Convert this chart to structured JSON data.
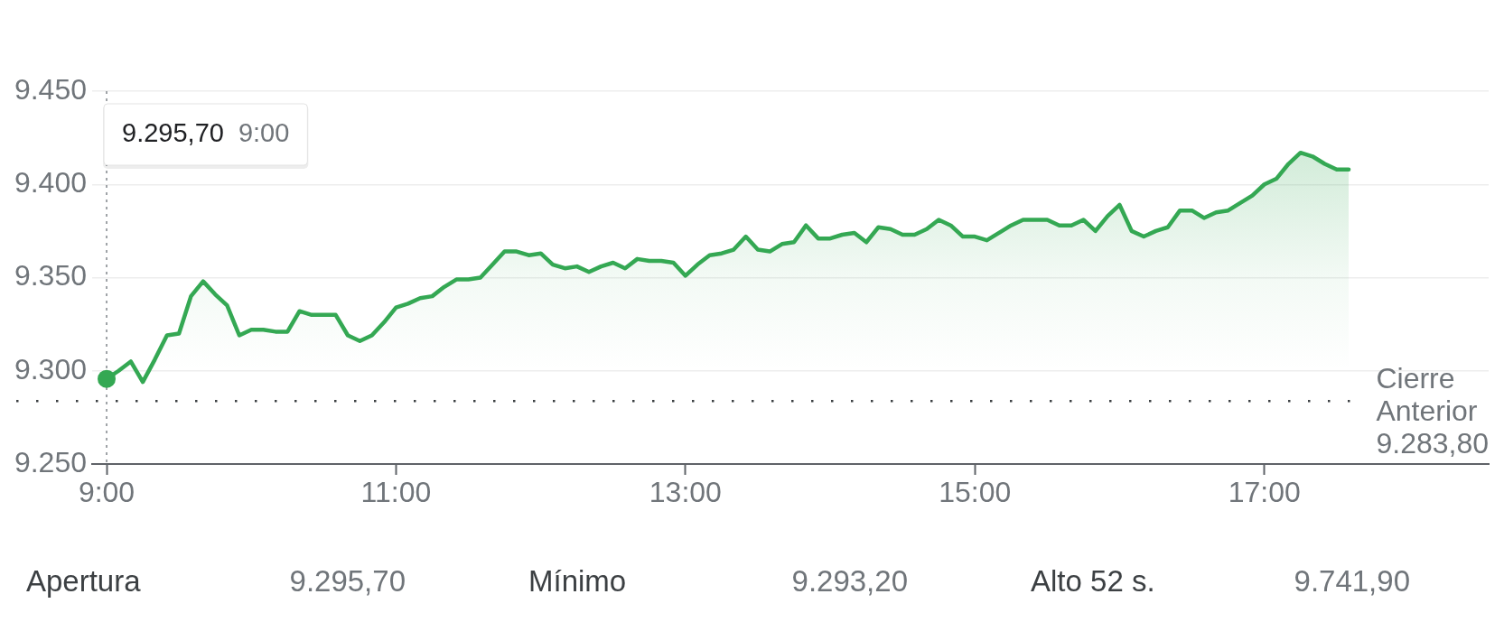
{
  "chart_data": {
    "type": "area",
    "color": "#34a853",
    "x": [
      9,
      9.083,
      9.167,
      9.25,
      9.333,
      9.417,
      9.5,
      9.583,
      9.667,
      9.75,
      9.833,
      9.917,
      10,
      10.083,
      10.167,
      10.25,
      10.333,
      10.417,
      10.5,
      10.583,
      10.667,
      10.75,
      10.833,
      10.917,
      11,
      11.083,
      11.167,
      11.25,
      11.333,
      11.417,
      11.5,
      11.583,
      11.667,
      11.75,
      11.833,
      11.917,
      12,
      12.083,
      12.167,
      12.25,
      12.333,
      12.417,
      12.5,
      12.583,
      12.667,
      12.75,
      12.833,
      12.917,
      13,
      13.083,
      13.167,
      13.25,
      13.333,
      13.417,
      13.5,
      13.583,
      13.667,
      13.75,
      13.833,
      13.917,
      14,
      14.083,
      14.167,
      14.25,
      14.333,
      14.417,
      14.5,
      14.583,
      14.667,
      14.75,
      14.833,
      14.917,
      15,
      15.083,
      15.167,
      15.25,
      15.333,
      15.417,
      15.5,
      15.583,
      15.667,
      15.75,
      15.833,
      15.917,
      16,
      16.083,
      16.167,
      16.25,
      16.333,
      16.417,
      16.5,
      16.583,
      16.667,
      16.75,
      16.833,
      16.917,
      17,
      17.083,
      17.167,
      17.25,
      17.333,
      17.417,
      17.5,
      17.583
    ],
    "values": [
      9295.7,
      9300,
      9305,
      9294,
      9306,
      9319,
      9320,
      9340,
      9348,
      9341,
      9335,
      9319,
      9322,
      9322,
      9321,
      9321,
      9332,
      9330,
      9330,
      9330,
      9319,
      9316,
      9319,
      9326,
      9334,
      9336,
      9339,
      9340,
      9345,
      9349,
      9349,
      9350,
      9357,
      9364,
      9364,
      9362,
      9363,
      9357,
      9355,
      9356,
      9353,
      9356,
      9358,
      9355,
      9360,
      9359,
      9359,
      9358,
      9351,
      9357,
      9362,
      9363,
      9365,
      9372,
      9365,
      9364,
      9368,
      9369,
      9378,
      9371,
      9371,
      9373,
      9374,
      9369,
      9377,
      9376,
      9373,
      9373,
      9376,
      9381,
      9378,
      9372,
      9372,
      9370,
      9374,
      9378,
      9381,
      9381,
      9381,
      9378,
      9378,
      9381,
      9375,
      9383,
      9389,
      9375,
      9372,
      9375,
      9377,
      9386,
      9386,
      9382,
      9385,
      9386,
      9390,
      9394,
      9400,
      9403,
      9411,
      9417,
      9415,
      9411,
      9408,
      9408
    ],
    "xlim": [
      8.9,
      18.55
    ],
    "xticks": [
      {
        "value": 9,
        "label": "9:00"
      },
      {
        "value": 11,
        "label": "11:00"
      },
      {
        "value": 13,
        "label": "13:00"
      },
      {
        "value": 15,
        "label": "15:00"
      },
      {
        "value": 17,
        "label": "17:00"
      }
    ],
    "ylim": [
      9250,
      9450
    ],
    "yticks": [
      {
        "value": 9250,
        "label": "9.250"
      },
      {
        "value": 9300,
        "label": "9.300"
      },
      {
        "value": 9350,
        "label": "9.350"
      },
      {
        "value": 9400,
        "label": "9.400"
      },
      {
        "value": 9450,
        "label": "9.450"
      }
    ],
    "grid": "y",
    "ref_lines": [
      {
        "axis": "y",
        "value": 9283.8,
        "label": "Cierre Anterior 9.283,80",
        "line_style": "dotted",
        "color": "#3c4043"
      },
      {
        "axis": "x",
        "value": 9,
        "label": "9.295,70 9:00",
        "line_style": "dashed",
        "color": "#80868b"
      }
    ],
    "annotations": [
      "Apertura",
      "9.295,70",
      "Mínimo",
      "9.293,20",
      "Alto 52 s.",
      "9.741,90"
    ]
  }
}
